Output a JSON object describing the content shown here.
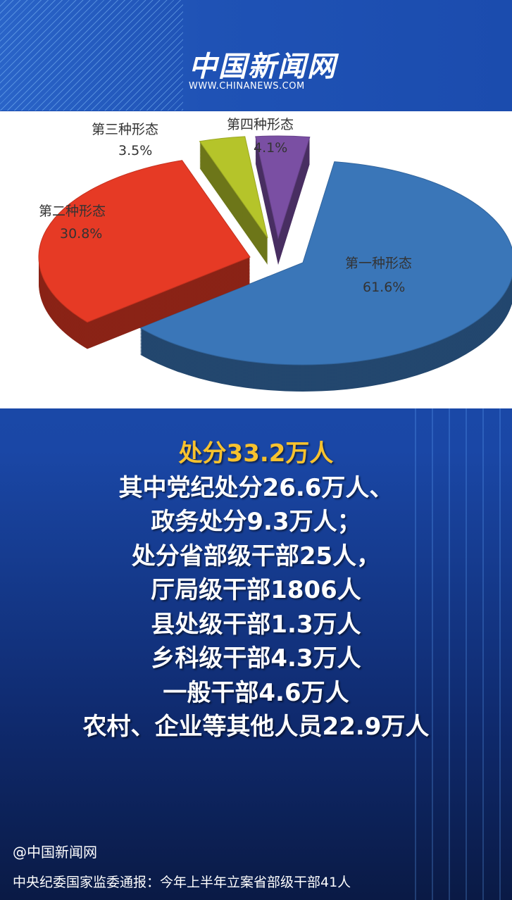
{
  "header": {
    "logo_text": "中国新闻网",
    "url": "WWW.CHINANEWS.COM"
  },
  "chart_data": {
    "type": "pie",
    "style": "3d-exploded",
    "labels": [
      "第一种形态",
      "第二种形态",
      "第三种形态",
      "第四种形态"
    ],
    "values": [
      61.6,
      30.8,
      3.5,
      4.1
    ],
    "value_labels": [
      "61.6%",
      "30.8%",
      "3.5%",
      "4.1%"
    ],
    "colors": [
      "#3a76b8",
      "#e63a25",
      "#b5c42a",
      "#7a4fa3"
    ]
  },
  "summary": {
    "lines": [
      "处分33.2万人",
      "其中党纪处分26.6万人、",
      "政务处分9.3万人；",
      "处分省部级干部25人，",
      "厅局级干部1806人",
      "县处级干部1.3万人",
      "乡科级干部4.3万人",
      "一般干部4.6万人",
      "农村、企业等其他人员22.9万人"
    ],
    "highlight_color": "#f7c22e"
  },
  "footer": {
    "handle": "@中国新闻网",
    "caption": "中央纪委国家监委通报：今年上半年立案省部级干部41人"
  }
}
